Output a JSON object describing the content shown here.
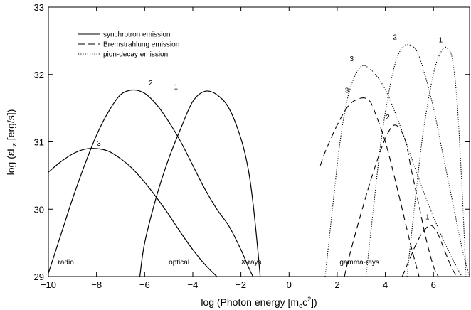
{
  "chart_data": {
    "type": "line",
    "xlabel": "log (Photon energy [m_e c^2])",
    "ylabel": "log (εL_ε [erg/s])",
    "xlim": [
      -10,
      7.5
    ],
    "ylim": [
      29,
      33
    ],
    "xticks": [
      -10,
      -8,
      -6,
      -4,
      -2,
      0,
      2,
      4,
      6
    ],
    "yticks": [
      29,
      30,
      31,
      32,
      33
    ],
    "grid": false,
    "legend_position": "top-left",
    "legend": [
      {
        "label": "synchrotron emission",
        "style": "solid"
      },
      {
        "label": "Bremstrahlung emission",
        "style": "dashed"
      },
      {
        "label": "pion-decay emission",
        "style": "dotted"
      }
    ],
    "annotations": [
      {
        "text": "radio",
        "x": -9.6,
        "y": 29.18
      },
      {
        "text": "optical",
        "x": -5.0,
        "y": 29.18
      },
      {
        "text": "X-rays",
        "x": -2.0,
        "y": 29.18
      },
      {
        "text": "gamma-rays",
        "x": 2.1,
        "y": 29.18
      }
    ],
    "series": [
      {
        "style": "solid",
        "label": "1",
        "label_pos": [
          -4.7,
          31.78
        ],
        "x": [
          -6.2,
          -6.0,
          -5.5,
          -5.0,
          -4.5,
          -4.0,
          -3.5,
          -3.0,
          -2.5,
          -2.0,
          -1.7,
          -1.5,
          -1.3,
          -1.2
        ],
        "y": [
          29.0,
          29.5,
          30.2,
          30.75,
          31.2,
          31.6,
          31.75,
          31.7,
          31.5,
          31.05,
          30.6,
          30.1,
          29.4,
          29.0
        ]
      },
      {
        "style": "solid",
        "label": "2",
        "label_pos": [
          -5.75,
          31.84
        ],
        "x": [
          -10.0,
          -9.5,
          -9.0,
          -8.5,
          -8.0,
          -7.5,
          -7.0,
          -6.5,
          -6.0,
          -5.5,
          -5.0,
          -4.5,
          -4.0,
          -3.5,
          -3.0,
          -2.5,
          -2.0,
          -1.7,
          -1.5
        ],
        "y": [
          29.05,
          29.6,
          30.15,
          30.65,
          31.1,
          31.45,
          31.7,
          31.77,
          31.72,
          31.55,
          31.3,
          31.0,
          30.65,
          30.3,
          30.0,
          29.75,
          29.4,
          29.15,
          29.0
        ]
      },
      {
        "style": "solid",
        "label": "3",
        "label_pos": [
          -7.9,
          30.94
        ],
        "x": [
          -10.0,
          -9.5,
          -9.0,
          -8.5,
          -8.0,
          -7.5,
          -7.0,
          -6.5,
          -6.0,
          -5.5,
          -5.0,
          -4.5,
          -4.0,
          -3.5,
          -3.0
        ],
        "y": [
          30.55,
          30.7,
          30.82,
          30.89,
          30.9,
          30.86,
          30.75,
          30.6,
          30.4,
          30.17,
          29.92,
          29.65,
          29.4,
          29.18,
          29.0
        ]
      },
      {
        "style": "dashed",
        "label": "1",
        "label_pos": [
          5.75,
          29.85
        ],
        "x": [
          4.7,
          5.0,
          5.3,
          5.6,
          5.9,
          6.2,
          6.5,
          6.8,
          7.0
        ],
        "y": [
          29.0,
          29.25,
          29.5,
          29.68,
          29.76,
          29.62,
          29.35,
          29.1,
          29.0
        ]
      },
      {
        "style": "dashed",
        "label": "2",
        "label_pos": [
          4.1,
          31.33
        ],
        "x": [
          2.3,
          2.5,
          3.0,
          3.5,
          4.0,
          4.4,
          4.8,
          5.1,
          5.4,
          5.7,
          6.0,
          6.2
        ],
        "y": [
          29.0,
          29.3,
          29.95,
          30.55,
          31.05,
          31.25,
          31.05,
          30.55,
          30.05,
          29.55,
          29.15,
          29.0
        ]
      },
      {
        "style": "dashed",
        "label": "3",
        "label_pos": [
          2.4,
          31.73
        ],
        "x": [
          1.3,
          1.5,
          2.0,
          2.5,
          3.0,
          3.3,
          3.5,
          4.0,
          4.5,
          5.0,
          5.4
        ],
        "y": [
          30.65,
          30.85,
          31.25,
          31.55,
          31.65,
          31.62,
          31.5,
          31.0,
          30.3,
          29.55,
          29.0
        ]
      },
      {
        "style": "dotted",
        "label": "1",
        "label_pos": [
          6.3,
          32.48
        ],
        "x": [
          4.9,
          5.2,
          5.5,
          5.8,
          6.1,
          6.4,
          6.6,
          6.8,
          7.0,
          7.2,
          7.35
        ],
        "y": [
          29.0,
          30.0,
          30.95,
          31.65,
          32.15,
          32.38,
          32.38,
          32.2,
          31.5,
          30.2,
          29.0
        ]
      },
      {
        "style": "dotted",
        "label": "2",
        "label_pos": [
          4.4,
          32.52
        ],
        "x": [
          3.2,
          3.5,
          3.8,
          4.1,
          4.4,
          4.7,
          5.0,
          5.3,
          5.6,
          6.0,
          6.4,
          6.8,
          7.2,
          7.5
        ],
        "y": [
          29.0,
          30.0,
          30.95,
          31.65,
          32.15,
          32.4,
          32.44,
          32.35,
          32.05,
          31.5,
          30.8,
          30.1,
          29.4,
          29.0
        ]
      },
      {
        "style": "dotted",
        "label": "3",
        "label_pos": [
          2.6,
          32.2
        ],
        "x": [
          1.5,
          1.8,
          2.1,
          2.4,
          2.7,
          3.0,
          3.3,
          3.7,
          4.1,
          4.6,
          5.1,
          5.6,
          6.1,
          6.6,
          7.1,
          7.5
        ],
        "y": [
          29.0,
          30.0,
          30.95,
          31.6,
          31.95,
          32.12,
          32.1,
          31.95,
          31.7,
          31.25,
          30.75,
          30.25,
          29.8,
          29.4,
          29.05,
          28.8
        ]
      }
    ]
  }
}
